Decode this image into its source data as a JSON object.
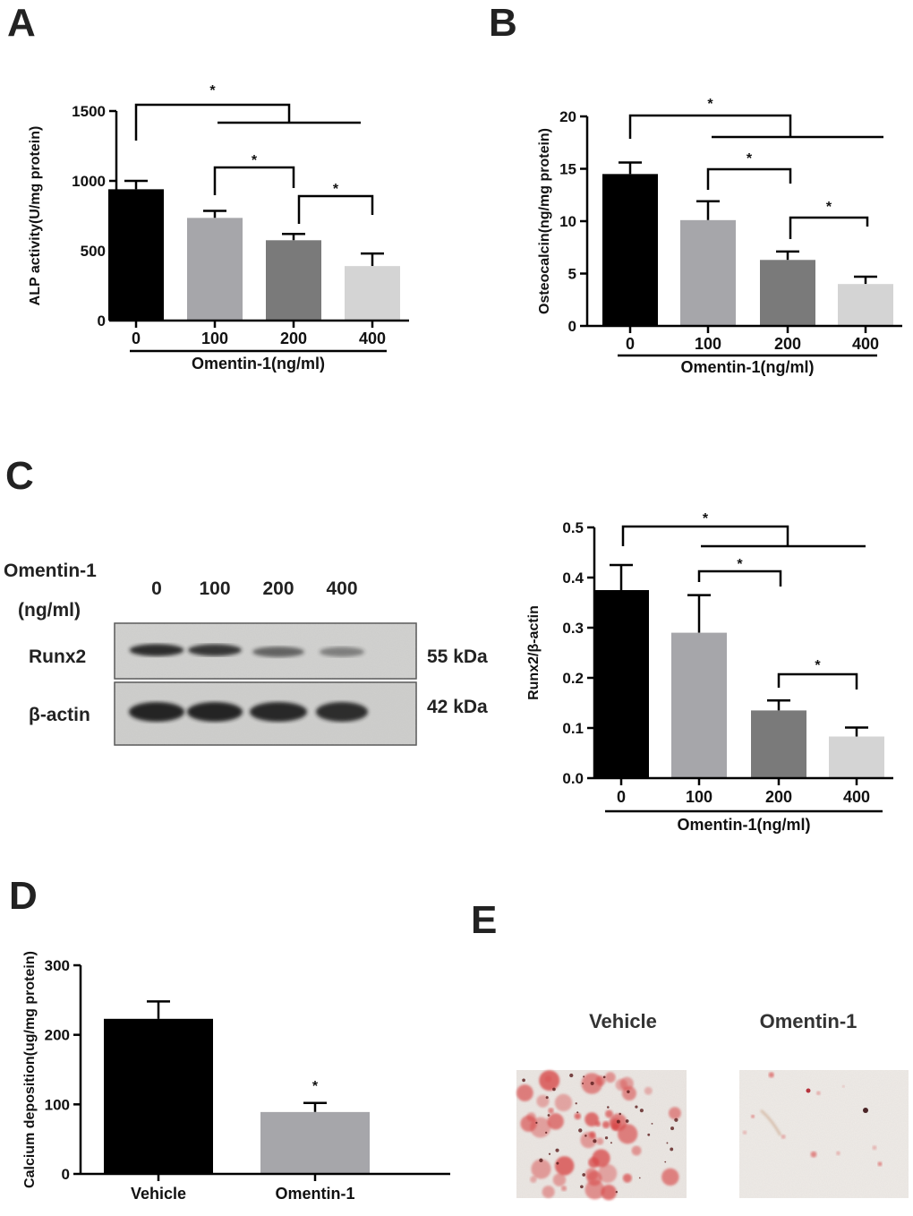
{
  "panels": {
    "A": "A",
    "B": "B",
    "C": "C",
    "D": "D",
    "E": "E"
  },
  "chart_data": [
    {
      "id": "A",
      "type": "bar",
      "categories": [
        "0",
        "100",
        "200",
        "400"
      ],
      "values": [
        940,
        735,
        575,
        390
      ],
      "errors": [
        60,
        50,
        45,
        90
      ],
      "colors": [
        "#000000",
        "#a6a6aa",
        "#7a7a7a",
        "#d4d4d4"
      ],
      "ylabel": "ALP activity(U/mg protein)",
      "xlabel": "Omentin-1(ng/ml)",
      "ylim": [
        0,
        1500
      ],
      "yticks": [
        0,
        500,
        1000,
        1500
      ],
      "ytick_labels": [
        "0",
        "500",
        "1000",
        "1500"
      ],
      "significance": "*"
    },
    {
      "id": "B",
      "type": "bar",
      "categories": [
        "0",
        "100",
        "200",
        "400"
      ],
      "values": [
        14.5,
        10.1,
        6.3,
        4.0
      ],
      "errors": [
        1.1,
        1.8,
        0.8,
        0.7
      ],
      "colors": [
        "#000000",
        "#a6a6aa",
        "#7a7a7a",
        "#d4d4d4"
      ],
      "ylabel": "Osteocalcin(ng/mg protein)",
      "xlabel": "Omentin-1(ng/ml)",
      "ylim": [
        0,
        20
      ],
      "yticks": [
        0,
        5,
        10,
        15,
        20
      ],
      "ytick_labels": [
        "0",
        "5",
        "10",
        "15",
        "20"
      ],
      "significance": "*"
    },
    {
      "id": "C",
      "type": "bar",
      "categories": [
        "0",
        "100",
        "200",
        "400"
      ],
      "values": [
        0.375,
        0.29,
        0.135,
        0.083
      ],
      "errors": [
        0.05,
        0.075,
        0.02,
        0.018
      ],
      "colors": [
        "#000000",
        "#a6a6aa",
        "#7a7a7a",
        "#d4d4d4"
      ],
      "ylabel": "Runx2/β-actin",
      "xlabel": "Omentin-1(ng/ml)",
      "ylim": [
        0,
        0.5
      ],
      "yticks": [
        0,
        0.1,
        0.2,
        0.3,
        0.4,
        0.5
      ],
      "ytick_labels": [
        "0.0",
        "0.1",
        "0.2",
        "0.3",
        "0.4",
        "0.5"
      ],
      "significance": "*"
    },
    {
      "id": "D",
      "type": "bar",
      "categories": [
        "Vehicle",
        "Omentin-1"
      ],
      "values": [
        223,
        89
      ],
      "errors": [
        25,
        13
      ],
      "colors": [
        "#000000",
        "#a6a6aa"
      ],
      "ylabel": "Calcium deposition(ug/mg protein)",
      "xlabel": "",
      "ylim": [
        0,
        300
      ],
      "yticks": [
        0,
        100,
        200,
        300
      ],
      "ytick_labels": [
        "0",
        "100",
        "200",
        "300"
      ],
      "significance": "*"
    }
  ],
  "blot": {
    "header": "Omentin-1",
    "header_unit": "(ng/ml)",
    "doses": [
      "0",
      "100",
      "200",
      "400"
    ],
    "rows": [
      {
        "name": "Runx2",
        "size": "55 kDa",
        "intensities": [
          0.9,
          0.85,
          0.6,
          0.45
        ]
      },
      {
        "name": "β-actin",
        "size": "42 kDa",
        "intensities": [
          0.95,
          0.95,
          0.93,
          0.9
        ]
      }
    ]
  },
  "staining": {
    "labels": [
      "Vehicle",
      "Omentin-1"
    ],
    "stain_color": "#d84a4a"
  }
}
